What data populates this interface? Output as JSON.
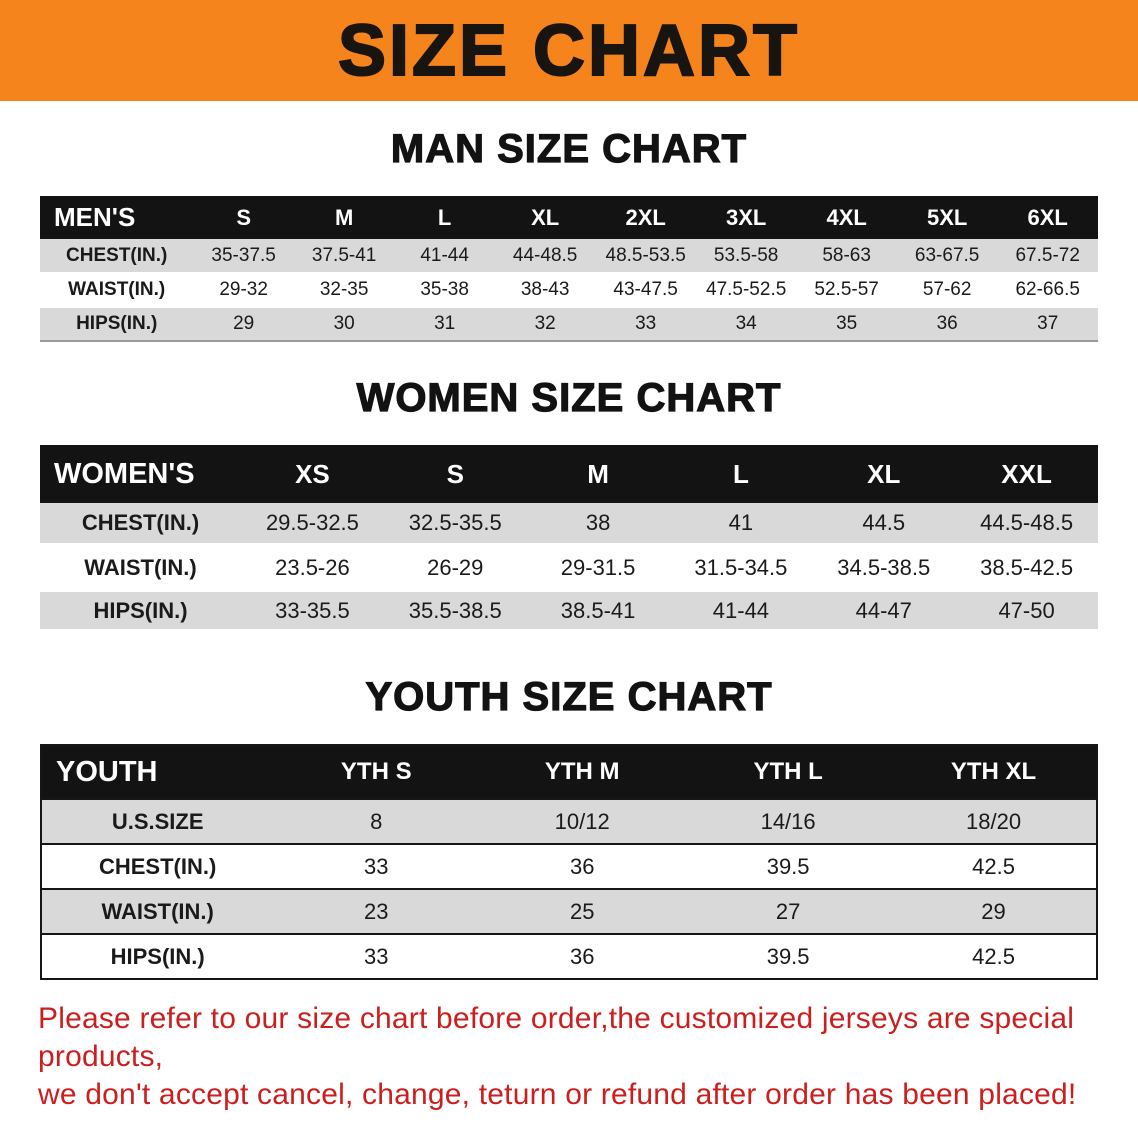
{
  "banner": {
    "title": "SIZE CHART",
    "bg_color": "#f5841d"
  },
  "men": {
    "heading": "MAN SIZE CHART",
    "table": {
      "header": [
        "MEN'S",
        "S",
        "M",
        "L",
        "XL",
        "2XL",
        "3XL",
        "4XL",
        "5XL",
        "6XL"
      ],
      "rows": [
        [
          "CHEST(IN.)",
          "35-37.5",
          "37.5-41",
          "41-44",
          "44-48.5",
          "48.5-53.5",
          "53.5-58",
          "58-63",
          "63-67.5",
          "67.5-72"
        ],
        [
          "WAIST(IN.)",
          "29-32",
          "32-35",
          "35-38",
          "38-43",
          "43-47.5",
          "47.5-52.5",
          "52.5-57",
          "57-62",
          "62-66.5"
        ],
        [
          "HIPS(IN.)",
          "29",
          "30",
          "31",
          "32",
          "33",
          "34",
          "35",
          "36",
          "37"
        ]
      ]
    }
  },
  "women": {
    "heading": "WOMEN SIZE CHART",
    "table": {
      "header": [
        "WOMEN'S",
        "XS",
        "S",
        "M",
        "L",
        "XL",
        "XXL"
      ],
      "rows": [
        [
          "CHEST(IN.)",
          "29.5-32.5",
          "32.5-35.5",
          "38",
          "41",
          "44.5",
          "44.5-48.5"
        ],
        [
          "WAIST(IN.)",
          "23.5-26",
          "26-29",
          "29-31.5",
          "31.5-34.5",
          "34.5-38.5",
          "38.5-42.5"
        ],
        [
          "HIPS(IN.)",
          "33-35.5",
          "35.5-38.5",
          "38.5-41",
          "41-44",
          "44-47",
          "47-50"
        ]
      ]
    }
  },
  "youth": {
    "heading": "YOUTH SIZE CHART",
    "table": {
      "header": [
        "YOUTH",
        "YTH S",
        "YTH M",
        "YTH L",
        "YTH XL"
      ],
      "rows": [
        [
          "U.S.SIZE",
          "8",
          "10/12",
          "14/16",
          "18/20"
        ],
        [
          "CHEST(IN.)",
          "33",
          "36",
          "39.5",
          "42.5"
        ],
        [
          "WAIST(IN.)",
          "23",
          "25",
          "27",
          "29"
        ],
        [
          "HIPS(IN.)",
          "33",
          "36",
          "39.5",
          "42.5"
        ]
      ]
    }
  },
  "disclaimer": {
    "line1": "Please refer to our size chart before order,the customized jerseys are special products,",
    "line2": "we don't accept cancel, change, teturn or refund after order has been placed!",
    "color": "#cc1e1e"
  }
}
